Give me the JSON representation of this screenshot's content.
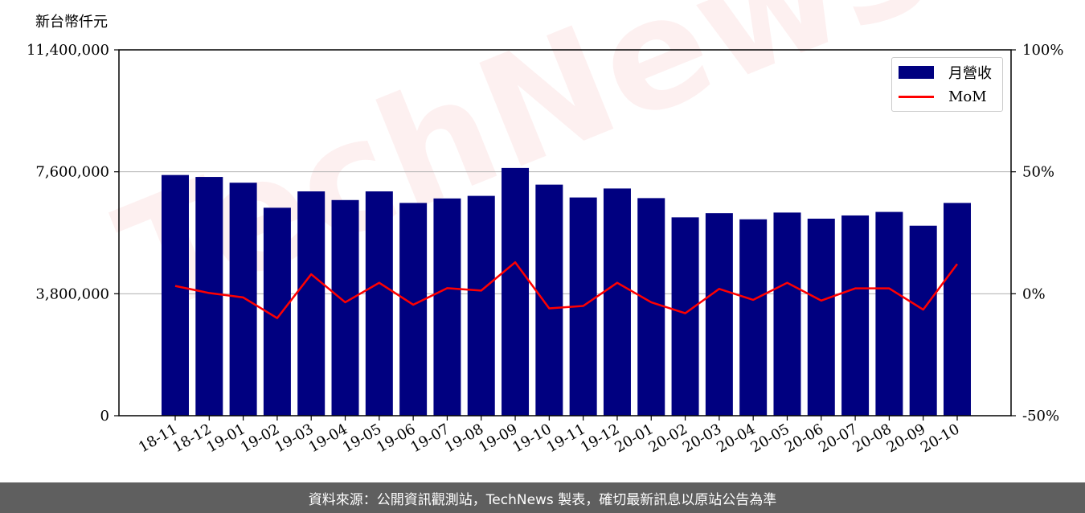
{
  "y_unit_label": "新台幣仟元",
  "legend": {
    "bar_label": "月營收",
    "line_label": "MoM"
  },
  "footer_text": "資料來源：公開資訊觀測站，TechNews 製表，確切最新訊息以原站公告為準",
  "watermark_text": "TechNews",
  "colors": {
    "bar": "#000080",
    "line": "#ff0000",
    "grid": "#b0b0b0",
    "footer_bg": "#5f5f5f"
  },
  "chart_data": {
    "type": "bar",
    "categories": [
      "18-11",
      "18-12",
      "19-01",
      "19-02",
      "19-03",
      "19-04",
      "19-05",
      "19-06",
      "19-07",
      "19-08",
      "19-09",
      "19-10",
      "19-11",
      "19-12",
      "20-01",
      "20-02",
      "20-03",
      "20-04",
      "20-05",
      "20-06",
      "20-07",
      "20-08",
      "20-09",
      "20-10"
    ],
    "series": [
      {
        "name": "月營收",
        "type": "bar",
        "axis": "left",
        "values": [
          7500000,
          7440000,
          7260000,
          6480000,
          6990000,
          6720000,
          6990000,
          6630000,
          6770000,
          6850000,
          7720000,
          7200000,
          6800000,
          7080000,
          6780000,
          6180000,
          6310000,
          6120000,
          6330000,
          6140000,
          6240000,
          6350000,
          5920000,
          6630000
        ]
      },
      {
        "name": "MoM",
        "type": "line",
        "axis": "right",
        "values": [
          3.2,
          0.3,
          -1.5,
          -10.0,
          8.0,
          -3.5,
          4.5,
          -4.5,
          2.3,
          1.3,
          12.9,
          -6.0,
          -5.0,
          4.5,
          -3.5,
          -8.0,
          2.0,
          -2.5,
          4.5,
          -2.8,
          2.2,
          2.2,
          -6.5,
          12.2
        ]
      }
    ],
    "y_left": {
      "ylim": [
        0,
        11400000
      ],
      "ticks": [
        "0",
        "3,800,000",
        "7,600,000",
        "11,400,000"
      ],
      "tick_values": [
        0,
        3800000,
        7600000,
        11400000
      ]
    },
    "y_right": {
      "ylim": [
        -50,
        100
      ],
      "ticks": [
        "-50%",
        "0%",
        "50%",
        "100%"
      ],
      "tick_values": [
        -50,
        0,
        50,
        100
      ]
    },
    "grid": true,
    "legend_position": "top-right"
  }
}
